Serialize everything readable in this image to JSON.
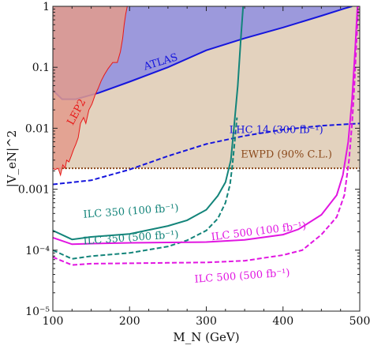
{
  "chart_data": {
    "type": "line",
    "xlabel": "M_N (GeV)",
    "ylabel": "|V_eN|^2",
    "xlim": [
      100,
      500
    ],
    "ylim": [
      1e-05,
      1
    ],
    "yscale": "log",
    "x_ticks": [
      100,
      200,
      300,
      400,
      500
    ],
    "y_ticks": [
      {
        "value": 1e-05,
        "label": "10⁻⁵"
      },
      {
        "value": 0.0001,
        "label": "10⁻⁴"
      },
      {
        "value": 0.001,
        "label": "0.001"
      },
      {
        "value": 0.01,
        "label": "0.01"
      },
      {
        "value": 0.1,
        "label": "0.1"
      },
      {
        "value": 1,
        "label": "1"
      }
    ],
    "grid": false,
    "regions": [
      {
        "name": "EWPD",
        "fill": "#e3d2be",
        "stroke": "#8b4a1c",
        "bound": 0.0022,
        "label": "EWPD (90% C.L.)",
        "label_color": "#8b4a1c"
      },
      {
        "name": "ATLAS",
        "fill": "#8f8fe2",
        "stroke": "#1515dd",
        "label": "ATLAS",
        "label_color": "#1515dd",
        "boundary": [
          [
            100,
            0.042
          ],
          [
            112,
            0.03
          ],
          [
            130,
            0.03
          ],
          [
            160,
            0.038
          ],
          [
            200,
            0.058
          ],
          [
            250,
            0.1
          ],
          [
            300,
            0.19
          ],
          [
            350,
            0.3
          ],
          [
            400,
            0.45
          ],
          [
            450,
            0.7
          ],
          [
            480,
            0.92
          ],
          [
            490,
            1.0
          ]
        ]
      },
      {
        "name": "LEP2",
        "fill": "#e39b8c",
        "stroke": "#e81818",
        "label": "LEP2",
        "label_color": "#e81818",
        "boundary": [
          [
            100,
            0.0022
          ],
          [
            103,
            0.0021
          ],
          [
            107,
            0.0022
          ],
          [
            110,
            0.0017
          ],
          [
            113,
            0.0025
          ],
          [
            116,
            0.0022
          ],
          [
            118,
            0.003
          ],
          [
            121,
            0.0028
          ],
          [
            124,
            0.0035
          ],
          [
            127,
            0.0045
          ],
          [
            130,
            0.0055
          ],
          [
            133,
            0.007
          ],
          [
            136,
            0.012
          ],
          [
            140,
            0.015
          ],
          [
            143,
            0.012
          ],
          [
            147,
            0.02
          ],
          [
            151,
            0.025
          ],
          [
            155,
            0.035
          ],
          [
            159,
            0.045
          ],
          [
            163,
            0.06
          ],
          [
            167,
            0.075
          ],
          [
            172,
            0.095
          ],
          [
            178,
            0.12
          ],
          [
            184,
            0.12
          ],
          [
            188,
            0.18
          ],
          [
            191,
            0.3
          ],
          [
            193,
            0.5
          ],
          [
            195,
            0.75
          ],
          [
            197,
            1.0
          ]
        ]
      }
    ],
    "series": [
      {
        "name": "LHC 14 (300 fb⁻¹)",
        "color": "#1515dd",
        "dash": true,
        "points": [
          [
            100,
            0.0012
          ],
          [
            150,
            0.0014
          ],
          [
            200,
            0.0021
          ],
          [
            250,
            0.0035
          ],
          [
            300,
            0.0055
          ],
          [
            350,
            0.0075
          ],
          [
            400,
            0.0095
          ],
          [
            450,
            0.011
          ],
          [
            500,
            0.012
          ]
        ]
      },
      {
        "name": "ILC 350 (100 fb⁻¹)",
        "color": "#13847a",
        "dash": false,
        "points": [
          [
            100,
            0.00021
          ],
          [
            125,
            0.00015
          ],
          [
            150,
            0.000165
          ],
          [
            200,
            0.000185
          ],
          [
            250,
            0.00025
          ],
          [
            275,
            0.00031
          ],
          [
            300,
            0.00046
          ],
          [
            315,
            0.00078
          ],
          [
            325,
            0.0013
          ],
          [
            332,
            0.003
          ],
          [
            336,
            0.01
          ],
          [
            341,
            0.05
          ],
          [
            345,
            0.3
          ],
          [
            348,
            1.0
          ]
        ]
      },
      {
        "name": "ILC 350 (500 fb⁻¹)",
        "color": "#13847a",
        "dash": true,
        "points": [
          [
            100,
            0.0001
          ],
          [
            125,
            7.2e-05
          ],
          [
            150,
            8e-05
          ],
          [
            200,
            9e-05
          ],
          [
            250,
            0.000115
          ],
          [
            275,
            0.000145
          ],
          [
            300,
            0.00021
          ],
          [
            315,
            0.00033
          ],
          [
            325,
            0.0006
          ],
          [
            331,
            0.0012
          ],
          [
            334,
            0.0025
          ],
          [
            337,
            0.006
          ],
          [
            340,
            0.015
          ]
        ]
      },
      {
        "name": "ILC 500 (100 fb⁻¹)",
        "color": "#e116e1",
        "dash": false,
        "points": [
          [
            100,
            0.00016
          ],
          [
            125,
            0.000125
          ],
          [
            150,
            0.000128
          ],
          [
            200,
            0.000132
          ],
          [
            250,
            0.000134
          ],
          [
            300,
            0.000136
          ],
          [
            350,
            0.000148
          ],
          [
            400,
            0.00018
          ],
          [
            420,
            0.00022
          ],
          [
            450,
            0.00038
          ],
          [
            470,
            0.0008
          ],
          [
            478,
            0.0017
          ],
          [
            485,
            0.006
          ],
          [
            490,
            0.03
          ],
          [
            494,
            0.2
          ],
          [
            497,
            1.0
          ]
        ]
      },
      {
        "name": "ILC 500 (500 fb⁻¹)",
        "color": "#e116e1",
        "dash": true,
        "points": [
          [
            100,
            7.7e-05
          ],
          [
            125,
            5.7e-05
          ],
          [
            150,
            6e-05
          ],
          [
            200,
            6.1e-05
          ],
          [
            250,
            6.2e-05
          ],
          [
            300,
            6.3e-05
          ],
          [
            350,
            6.7e-05
          ],
          [
            400,
            8.3e-05
          ],
          [
            425,
            0.0001
          ],
          [
            450,
            0.00018
          ],
          [
            470,
            0.00035
          ],
          [
            480,
            0.0008
          ],
          [
            486,
            0.003
          ],
          [
            490,
            0.012
          ],
          [
            493,
            0.05
          ],
          [
            496,
            0.3
          ],
          [
            498,
            1.0
          ]
        ]
      }
    ],
    "annotations": [
      {
        "text": "ATLAS",
        "x": 220,
        "y": 0.09,
        "rotate": -17,
        "color": "#1515dd"
      },
      {
        "text": "LEP2",
        "x": 126,
        "y": 0.011,
        "rotate": -62,
        "color": "#e81818"
      },
      {
        "text": "LHC 14 (300 fb⁻¹)",
        "x": 330,
        "y": 0.0083,
        "rotate": 0,
        "color": "#1515dd"
      },
      {
        "text": "EWPD (90% C.L.)",
        "x": 345,
        "y": 0.0033,
        "rotate": 0,
        "color": "#8b4a1c"
      },
      {
        "text": "ILC 350 (100 fb⁻¹)",
        "x": 140,
        "y": 0.00034,
        "rotate": -4,
        "color": "#13847a"
      },
      {
        "text": "ILC 350 (500 fb⁻¹)",
        "x": 140,
        "y": 0.000125,
        "rotate": -4,
        "color": "#13847a"
      },
      {
        "text": "ILC 500 (100 fb⁻¹)",
        "x": 307,
        "y": 0.000145,
        "rotate": -7,
        "color": "#e116e1"
      },
      {
        "text": "ILC 500 (500 fb⁻¹)",
        "x": 285,
        "y": 2.95e-05,
        "rotate": -4,
        "color": "#e116e1"
      }
    ]
  }
}
